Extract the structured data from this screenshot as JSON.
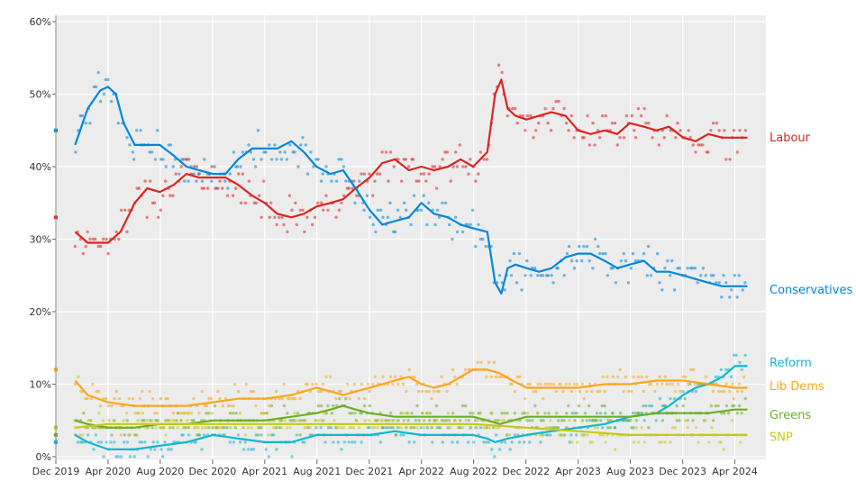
{
  "chart_data": {
    "type": "scatter",
    "title": "",
    "xlabel": "",
    "ylabel": "",
    "x_range": [
      2019.917,
      2024.333
    ],
    "ylim": [
      0,
      60
    ],
    "y_ticks": [
      {
        "value": 0,
        "label": "0%"
      },
      {
        "value": 10,
        "label": "10%"
      },
      {
        "value": 20,
        "label": "20%"
      },
      {
        "value": 30,
        "label": "30%"
      },
      {
        "value": 40,
        "label": "40%"
      },
      {
        "value": 50,
        "label": "50%"
      },
      {
        "value": 60,
        "label": "60%"
      }
    ],
    "x_ticks": [
      {
        "value": 2019.917,
        "label": "Dec 2019"
      },
      {
        "value": 2020.25,
        "label": "Apr 2020"
      },
      {
        "value": 2020.583,
        "label": "Aug 2020"
      },
      {
        "value": 2020.917,
        "label": "Dec 2020"
      },
      {
        "value": 2021.25,
        "label": "Apr 2021"
      },
      {
        "value": 2021.583,
        "label": "Aug 2021"
      },
      {
        "value": 2021.917,
        "label": "Dec 2021"
      },
      {
        "value": 2022.25,
        "label": "Apr 2022"
      },
      {
        "value": 2022.583,
        "label": "Aug 2022"
      },
      {
        "value": 2022.917,
        "label": "Dec 2022"
      },
      {
        "value": 2023.25,
        "label": "Apr 2023"
      },
      {
        "value": 2023.583,
        "label": "Aug 2023"
      },
      {
        "value": 2023.917,
        "label": "Dec 2023"
      },
      {
        "value": 2024.25,
        "label": "Apr 2024"
      }
    ],
    "grid": true,
    "series": [
      {
        "name": "Labour",
        "color": "#dc241f",
        "election_result": 33,
        "x": [
          2020.04,
          2020.12,
          2020.25,
          2020.33,
          2020.42,
          2020.5,
          2020.58,
          2020.67,
          2020.75,
          2020.83,
          2020.92,
          2021.0,
          2021.08,
          2021.17,
          2021.25,
          2021.33,
          2021.42,
          2021.5,
          2021.58,
          2021.67,
          2021.75,
          2021.83,
          2021.92,
          2022.0,
          2022.08,
          2022.17,
          2022.25,
          2022.33,
          2022.42,
          2022.5,
          2022.58,
          2022.67,
          2022.72,
          2022.76,
          2022.8,
          2022.85,
          2022.92,
          2023.0,
          2023.08,
          2023.17,
          2023.25,
          2023.33,
          2023.42,
          2023.5,
          2023.58,
          2023.67,
          2023.75,
          2023.83,
          2023.92,
          2024.0,
          2024.08,
          2024.17,
          2024.25,
          2024.33
        ],
        "values": [
          31,
          29.5,
          29.5,
          31,
          35,
          37,
          36.5,
          37.5,
          39,
          38.5,
          38.5,
          38.5,
          37.5,
          36,
          35,
          33.5,
          33,
          33.5,
          34.5,
          35,
          35.5,
          37,
          38.5,
          40.5,
          41,
          39.5,
          40,
          39.5,
          40,
          41,
          40,
          42,
          50,
          52,
          48,
          47,
          46.5,
          47,
          47.5,
          47,
          45,
          44.5,
          45,
          44.5,
          46,
          45.5,
          45,
          45.5,
          44,
          43.5,
          44.5,
          44,
          44,
          44
        ]
      },
      {
        "name": "Conservatives",
        "color": "#0087dc",
        "election_result": 45,
        "x": [
          2020.04,
          2020.12,
          2020.2,
          2020.25,
          2020.3,
          2020.35,
          2020.42,
          2020.5,
          2020.58,
          2020.67,
          2020.75,
          2020.83,
          2020.92,
          2021.0,
          2021.08,
          2021.17,
          2021.25,
          2021.33,
          2021.42,
          2021.5,
          2021.58,
          2021.67,
          2021.75,
          2021.83,
          2021.92,
          2022.0,
          2022.08,
          2022.17,
          2022.25,
          2022.33,
          2022.42,
          2022.5,
          2022.58,
          2022.67,
          2022.72,
          2022.76,
          2022.8,
          2022.85,
          2022.92,
          2023.0,
          2023.08,
          2023.17,
          2023.25,
          2023.33,
          2023.42,
          2023.5,
          2023.58,
          2023.67,
          2023.75,
          2023.83,
          2023.92,
          2024.0,
          2024.08,
          2024.17,
          2024.25,
          2024.33
        ],
        "values": [
          43,
          48,
          50.5,
          51,
          50,
          46,
          43,
          43,
          43,
          41.5,
          40,
          39.5,
          39,
          39,
          41,
          42.5,
          42.5,
          42.5,
          43.5,
          42,
          40,
          39,
          39.5,
          37,
          34,
          32,
          32.5,
          33,
          35,
          33.5,
          33,
          32,
          31.5,
          31,
          24,
          22.5,
          26,
          26.5,
          26,
          25.5,
          26,
          27.5,
          28,
          28,
          27,
          26,
          26.5,
          27,
          25.5,
          25.5,
          25,
          24.5,
          24,
          23.5,
          23.5,
          23.5
        ]
      },
      {
        "name": "Reform",
        "color": "#12b6cf",
        "election_result": 2,
        "x": [
          2020.04,
          2020.12,
          2020.25,
          2020.42,
          2020.58,
          2020.75,
          2020.92,
          2021.08,
          2021.25,
          2021.42,
          2021.58,
          2021.75,
          2021.92,
          2022.08,
          2022.25,
          2022.42,
          2022.58,
          2022.67,
          2022.72,
          2022.8,
          2022.92,
          2023.08,
          2023.25,
          2023.42,
          2023.58,
          2023.75,
          2023.83,
          2023.92,
          2024.0,
          2024.08,
          2024.17,
          2024.25,
          2024.33
        ],
        "values": [
          3,
          2,
          1,
          1,
          1.5,
          2,
          3,
          2.5,
          2,
          2,
          3,
          3,
          3,
          3.5,
          3,
          3,
          3,
          2.5,
          2,
          2.5,
          3,
          3.5,
          4,
          4.5,
          5.5,
          6,
          7,
          8.5,
          9.5,
          10,
          11,
          12.5,
          12.5
        ]
      },
      {
        "name": "Lib Dems",
        "color": "#faa61a",
        "election_result": 12,
        "x": [
          2020.04,
          2020.12,
          2020.25,
          2020.42,
          2020.58,
          2020.75,
          2020.92,
          2021.08,
          2021.25,
          2021.42,
          2021.5,
          2021.58,
          2021.67,
          2021.75,
          2021.83,
          2021.92,
          2022.0,
          2022.08,
          2022.17,
          2022.25,
          2022.33,
          2022.42,
          2022.5,
          2022.58,
          2022.67,
          2022.75,
          2022.83,
          2022.92,
          2023.08,
          2023.25,
          2023.42,
          2023.58,
          2023.75,
          2023.92,
          2024.08,
          2024.25,
          2024.33
        ],
        "values": [
          10.5,
          8.5,
          7.5,
          7,
          7,
          7,
          7.5,
          8,
          8,
          8.5,
          9,
          9.5,
          9,
          8.5,
          9,
          9.5,
          10,
          10.5,
          11,
          10,
          9.5,
          10,
          11,
          12,
          12,
          11.5,
          10.5,
          9.5,
          9.5,
          9.5,
          10,
          10,
          10.5,
          10.5,
          10,
          9.5,
          9.5
        ]
      },
      {
        "name": "Greens",
        "color": "#6ab023",
        "election_result": 3,
        "x": [
          2020.04,
          2020.12,
          2020.25,
          2020.42,
          2020.58,
          2020.75,
          2020.92,
          2021.08,
          2021.25,
          2021.42,
          2021.58,
          2021.67,
          2021.75,
          2021.83,
          2021.92,
          2022.08,
          2022.25,
          2022.42,
          2022.58,
          2022.67,
          2022.75,
          2022.92,
          2023.08,
          2023.25,
          2023.42,
          2023.58,
          2023.75,
          2023.92,
          2024.08,
          2024.25,
          2024.33
        ],
        "values": [
          5,
          4.5,
          4,
          4,
          4.5,
          4.5,
          5,
          5,
          5,
          5.5,
          6,
          6.5,
          7,
          6.5,
          6,
          5.5,
          5.5,
          5.5,
          5.5,
          5,
          4.5,
          5.5,
          5.5,
          5.5,
          5.5,
          5.5,
          6,
          6,
          6,
          6.5,
          6.5
        ]
      },
      {
        "name": "SNP",
        "color": "#c8c81b",
        "election_result": 4,
        "x": [
          2020.04,
          2020.25,
          2020.58,
          2020.92,
          2021.25,
          2021.58,
          2021.92,
          2022.25,
          2022.58,
          2022.92,
          2023.25,
          2023.58,
          2023.92,
          2024.25,
          2024.33
        ],
        "values": [
          4,
          4.5,
          4.5,
          4.5,
          4.5,
          4.5,
          4.5,
          4.5,
          4.5,
          4,
          3.5,
          3,
          3,
          3,
          3
        ]
      }
    ]
  }
}
